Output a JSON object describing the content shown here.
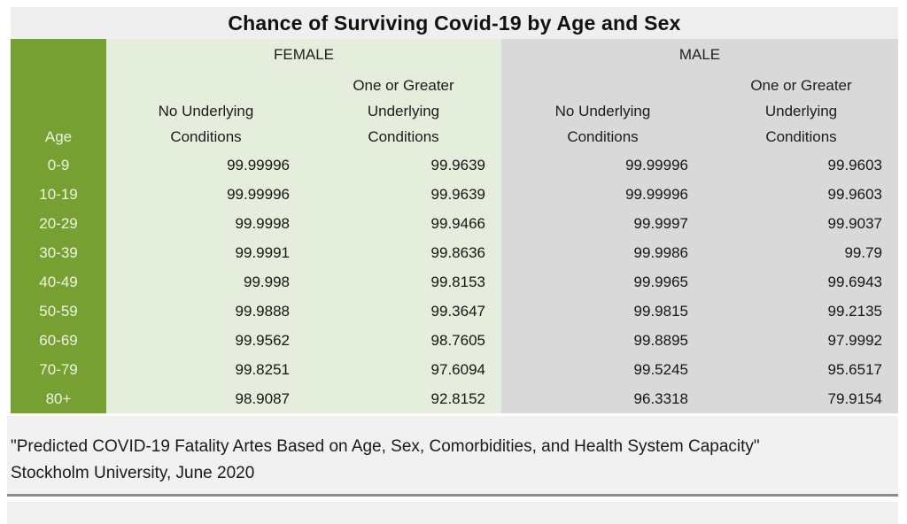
{
  "title": "Chance of Surviving Covid-19 by Age and Sex",
  "colors": {
    "age_column_green": "#77A033",
    "female_bg": "#E5EEDD",
    "male_bg": "#D9D9D9",
    "title_band_bg": "#EFEFEF",
    "footer_bg": "#F1F1F1",
    "separator_gray": "#8C8C8C"
  },
  "table": {
    "age_header": "Age",
    "sections": [
      {
        "label": "FEMALE",
        "columns": [
          [
            "No Underlying",
            "Conditions"
          ],
          [
            "One or Greater",
            "Underlying",
            "Conditions"
          ]
        ]
      },
      {
        "label": "MALE",
        "columns": [
          [
            "No Underlying",
            "Conditions"
          ],
          [
            "One or Greater",
            "Underlying",
            "Conditions"
          ]
        ]
      }
    ],
    "rows": [
      {
        "age": "0-9",
        "values": [
          "99.99996",
          "99.9639",
          "99.99996",
          "99.9603"
        ]
      },
      {
        "age": "10-19",
        "values": [
          "99.99996",
          "99.9639",
          "99.99996",
          "99.9603"
        ]
      },
      {
        "age": "20-29",
        "values": [
          "99.9998",
          "99.9466",
          "99.9997",
          "99.9037"
        ]
      },
      {
        "age": "30-39",
        "values": [
          "99.9991",
          "99.8636",
          "99.9986",
          "99.79"
        ]
      },
      {
        "age": "40-49",
        "values": [
          "99.998",
          "99.8153",
          "99.9965",
          "99.6943"
        ]
      },
      {
        "age": "50-59",
        "values": [
          "99.9888",
          "99.3647",
          "99.9815",
          "99.2135"
        ]
      },
      {
        "age": "60-69",
        "values": [
          "99.9562",
          "98.7605",
          "99.8895",
          "97.9992"
        ]
      },
      {
        "age": "70-79",
        "values": [
          "99.8251",
          "97.6094",
          "99.5245",
          "95.6517"
        ]
      },
      {
        "age": "80+",
        "values": [
          "98.9087",
          "92.8152",
          "96.3318",
          "79.9154"
        ]
      }
    ]
  },
  "footer": {
    "line1": "\"Predicted COVID-19 Fatality Artes Based on Age, Sex, Comorbidities, and Health System Capacity\"",
    "line2": "Stockholm University, June 2020"
  },
  "chart_data": {
    "type": "table",
    "title": "Chance of Surviving Covid-19 by Age and Sex",
    "categories": [
      "0-9",
      "10-19",
      "20-29",
      "30-39",
      "40-49",
      "50-59",
      "60-69",
      "70-79",
      "80+"
    ],
    "series": [
      {
        "name": "Female - No Underlying Conditions",
        "values": [
          99.99996,
          99.99996,
          99.9998,
          99.9991,
          99.998,
          99.9888,
          99.9562,
          99.8251,
          98.9087
        ]
      },
      {
        "name": "Female - One or Greater Underlying Conditions",
        "values": [
          99.9639,
          99.9639,
          99.9466,
          99.8636,
          99.8153,
          99.3647,
          98.7605,
          97.6094,
          92.8152
        ]
      },
      {
        "name": "Male - No Underlying Conditions",
        "values": [
          99.99996,
          99.99996,
          99.9997,
          99.9986,
          99.9965,
          99.9815,
          99.8895,
          99.5245,
          96.3318
        ]
      },
      {
        "name": "Male - One or Greater Underlying Conditions",
        "values": [
          99.9603,
          99.9603,
          99.9037,
          99.79,
          99.6943,
          99.2135,
          97.9992,
          95.6517,
          79.9154
        ]
      }
    ],
    "source_note": "\"Predicted COVID-19 Fatality Artes Based on Age, Sex, Comorbidities, and Health System Capacity\" Stockholm University, June 2020"
  }
}
